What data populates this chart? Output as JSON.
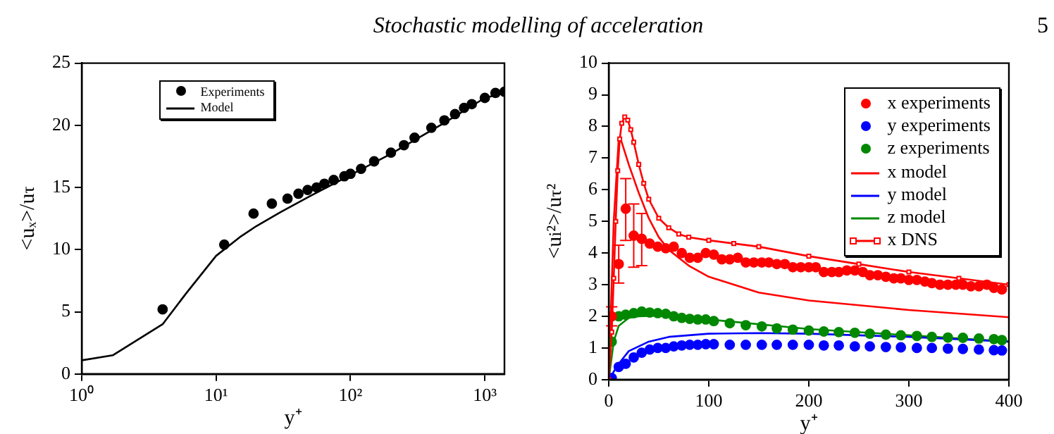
{
  "chart_data": [
    {
      "type": "scatter",
      "annotations": [
        "Stochastic modelling of acceleration"
      ],
      "xlabel": "y⁺",
      "ylabel": "<uₓ>/u$_{τ}$",
      "log": "x",
      "xlim": [
        1,
        1400
      ],
      "xticks": [
        {
          "value": 1,
          "label": "10⁰"
        },
        {
          "value": 10,
          "label": "10¹"
        },
        {
          "value": 100,
          "label": "10²"
        },
        {
          "value": 1000,
          "label": "10³"
        }
      ],
      "ylim": [
        0,
        25
      ],
      "yticks": [
        0,
        5,
        10,
        15,
        20,
        25
      ],
      "legend": "top left",
      "grid": false,
      "series": [
        {
          "name": "Experiments",
          "color": "#000000",
          "type": "scatter",
          "marker": "circle",
          "x": [
            4,
            11.5,
            19,
            26,
            34,
            41,
            48,
            56,
            64,
            75,
            90,
            100,
            120,
            150,
            200,
            250,
            300,
            400,
            500,
            600,
            700,
            800,
            1000,
            1200,
            1400
          ],
          "values": [
            5.2,
            10.4,
            12.9,
            13.7,
            14.1,
            14.5,
            14.8,
            15.0,
            15.3,
            15.6,
            15.9,
            16.1,
            16.5,
            17.1,
            17.8,
            18.4,
            19.0,
            19.8,
            20.4,
            20.9,
            21.4,
            21.7,
            22.2,
            22.6,
            22.7
          ]
        },
        {
          "name": "Model",
          "color": "#000000",
          "type": "line",
          "marker": "none",
          "x": [
            1,
            1.7,
            4,
            6,
            10,
            15,
            20,
            30,
            50,
            100,
            200,
            500,
            1000,
            1400
          ],
          "values": [
            1.1,
            1.5,
            4.0,
            6.5,
            9.5,
            11.0,
            11.9,
            13.0,
            14.3,
            16.0,
            17.7,
            20.2,
            22.2,
            22.6
          ]
        }
      ]
    },
    {
      "type": "scatter",
      "annotations": [
        "5"
      ],
      "xlabel": "y⁺",
      "ylabel": "<u$_{i}$²>/u$_{τ}$²",
      "xlim": [
        0,
        400
      ],
      "xticks": [
        0,
        100,
        200,
        300,
        400
      ],
      "ylim": [
        0,
        10
      ],
      "yticks": [
        0,
        1,
        2,
        3,
        4,
        5,
        6,
        7,
        8,
        9,
        10
      ],
      "legend": "top right",
      "grid": false,
      "series": [
        {
          "name": "x experiments",
          "color": "#ff0000",
          "type": "scatter",
          "marker": "circle",
          "x": [
            3,
            10,
            17,
            25,
            33,
            41,
            49,
            57,
            65,
            73,
            81,
            89,
            97,
            105,
            113,
            121,
            129,
            137,
            145,
            153,
            160,
            168,
            176,
            184,
            192,
            200,
            207,
            215,
            223,
            230,
            238,
            246,
            254,
            261,
            269,
            277,
            285,
            292,
            300,
            308,
            316,
            323,
            331,
            339,
            347,
            354,
            362,
            370,
            378,
            385,
            393
          ],
          "values": [
            2.0,
            3.65,
            5.4,
            4.55,
            4.45,
            4.3,
            4.2,
            4.15,
            4.2,
            4.0,
            3.85,
            3.85,
            4.0,
            3.95,
            3.8,
            3.8,
            3.85,
            3.7,
            3.7,
            3.7,
            3.7,
            3.65,
            3.65,
            3.55,
            3.55,
            3.55,
            3.55,
            3.4,
            3.4,
            3.4,
            3.45,
            3.45,
            3.4,
            3.3,
            3.3,
            3.25,
            3.2,
            3.2,
            3.15,
            3.15,
            3.1,
            3.05,
            3.0,
            3.0,
            3.0,
            3.0,
            2.95,
            2.95,
            3.0,
            2.9,
            2.85
          ],
          "errors": [
            [
              1.7,
              2.3
            ],
            [
              3.05,
              4.25
            ],
            [
              4.4,
              6.35
            ],
            [
              3.55,
              5.55
            ],
            [
              3.6,
              5.25
            ],
            null,
            null,
            null,
            null,
            null,
            null,
            null,
            null,
            null,
            null,
            null,
            null,
            null,
            null,
            null,
            null,
            null,
            null,
            null,
            null,
            null,
            null,
            null,
            null,
            null,
            null,
            null,
            null,
            null,
            null,
            null,
            null,
            null,
            null,
            null,
            null,
            null,
            null,
            null,
            null,
            null,
            null,
            null,
            null,
            null,
            null
          ]
        },
        {
          "name": "y experiments",
          "color": "#0000ff",
          "type": "scatter",
          "marker": "circle",
          "x": [
            3,
            10,
            17,
            25,
            33,
            41,
            49,
            57,
            65,
            73,
            81,
            89,
            97,
            105,
            121,
            137,
            153,
            168,
            184,
            200,
            215,
            230,
            246,
            261,
            277,
            292,
            308,
            323,
            339,
            354,
            370,
            385,
            393
          ],
          "values": [
            0.05,
            0.4,
            0.5,
            0.7,
            0.85,
            0.95,
            1.0,
            1.0,
            1.05,
            1.08,
            1.1,
            1.1,
            1.12,
            1.12,
            1.1,
            1.1,
            1.1,
            1.1,
            1.1,
            1.1,
            1.08,
            1.08,
            1.05,
            1.05,
            1.03,
            1.02,
            1.0,
            1.0,
            0.98,
            0.97,
            0.95,
            0.93,
            0.92
          ]
        },
        {
          "name": "z experiments",
          "color": "#008800",
          "type": "scatter",
          "marker": "circle",
          "x": [
            3,
            10,
            17,
            25,
            33,
            41,
            49,
            57,
            65,
            73,
            81,
            89,
            97,
            105,
            121,
            137,
            153,
            168,
            184,
            200,
            215,
            230,
            246,
            261,
            277,
            292,
            308,
            323,
            339,
            354,
            370,
            385,
            393
          ],
          "values": [
            1.2,
            2.0,
            2.05,
            2.1,
            2.15,
            2.12,
            2.1,
            2.08,
            2.0,
            1.95,
            1.92,
            1.9,
            1.9,
            1.85,
            1.78,
            1.72,
            1.68,
            1.62,
            1.58,
            1.55,
            1.52,
            1.5,
            1.48,
            1.45,
            1.42,
            1.4,
            1.38,
            1.35,
            1.33,
            1.32,
            1.3,
            1.28,
            1.25
          ]
        },
        {
          "name": "x model",
          "color": "#ff0000",
          "type": "line",
          "marker": "none",
          "x": [
            0,
            5,
            10,
            13,
            20,
            30,
            40,
            50,
            60,
            80,
            100,
            150,
            200,
            300,
            400
          ],
          "values": [
            0,
            5.0,
            7.6,
            7.5,
            6.8,
            5.9,
            5.1,
            4.5,
            4.1,
            3.6,
            3.25,
            2.75,
            2.5,
            2.2,
            1.97
          ]
        },
        {
          "name": "y model",
          "color": "#0000ff",
          "type": "line",
          "marker": "none",
          "x": [
            0,
            10,
            20,
            40,
            60,
            100,
            150,
            200,
            300,
            400
          ],
          "values": [
            0,
            0.5,
            0.9,
            1.2,
            1.35,
            1.45,
            1.47,
            1.45,
            1.35,
            1.2
          ]
        },
        {
          "name": "z model",
          "color": "#008800",
          "type": "line",
          "marker": "none",
          "x": [
            0,
            5,
            10,
            20,
            30,
            50,
            100,
            200,
            300,
            400
          ],
          "values": [
            0,
            1.2,
            1.7,
            1.95,
            2.0,
            2.02,
            1.9,
            1.6,
            1.4,
            1.2
          ]
        },
        {
          "name": "x DNS",
          "color": "#ff0000",
          "type": "line",
          "marker": "square",
          "x": [
            0,
            3,
            5,
            7,
            9,
            11,
            13,
            16,
            19,
            22,
            25,
            30,
            35,
            40,
            50,
            60,
            70,
            80,
            100,
            125,
            150,
            200,
            250,
            300,
            350,
            400
          ],
          "values": [
            0,
            1.5,
            3.2,
            5.0,
            6.6,
            7.6,
            8.1,
            8.3,
            8.2,
            7.9,
            7.5,
            6.8,
            6.2,
            5.7,
            5.1,
            4.8,
            4.6,
            4.5,
            4.4,
            4.3,
            4.2,
            3.9,
            3.65,
            3.4,
            3.2,
            3.0
          ]
        }
      ]
    }
  ]
}
